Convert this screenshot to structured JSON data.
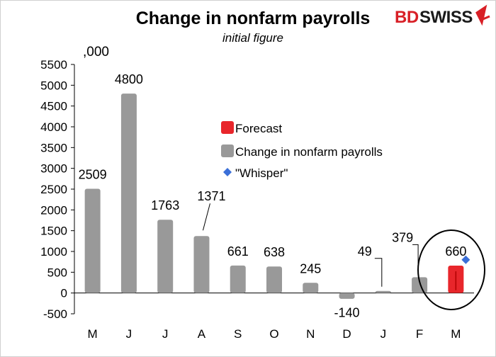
{
  "header": {
    "title": "Change in nonfarm payrolls",
    "subtitle": "initial figure"
  },
  "logo": {
    "text_bd": "BD",
    "text_swiss": "SWISS",
    "accent_color": "#d81f26"
  },
  "chart_data": {
    "type": "bar",
    "title": "Change in nonfarm payrolls",
    "subtitle": "initial figure",
    "unit_label": ",000",
    "categories": [
      "M",
      "J",
      "J",
      "A",
      "S",
      "O",
      "N",
      "D",
      "J",
      "F",
      "M"
    ],
    "series": [
      {
        "name": "Change in nonfarm payrolls",
        "color": "#999999",
        "values": [
          2509,
          4800,
          1763,
          1371,
          661,
          638,
          245,
          -140,
          49,
          379,
          null
        ]
      },
      {
        "name": "Forecast",
        "color": "#e8262b",
        "values": [
          null,
          null,
          null,
          null,
          null,
          null,
          null,
          null,
          null,
          null,
          660
        ]
      },
      {
        "name": "\"Whisper\"",
        "marker": "diamond",
        "color": "#3a6fd8",
        "values": [
          null,
          null,
          null,
          null,
          null,
          null,
          null,
          null,
          null,
          null,
          800
        ]
      }
    ],
    "data_labels": [
      "2509",
      "4800",
      "1763",
      "1371",
      "661",
      "638",
      "245",
      "-140",
      "49",
      "379",
      "660"
    ],
    "ylim": [
      -500,
      5500
    ],
    "yticks": [
      -500,
      0,
      500,
      1000,
      1500,
      2000,
      2500,
      3000,
      3500,
      4000,
      4500,
      5000,
      5500
    ],
    "grid": false,
    "legend_position": "center-right",
    "highlight_category_index": 10
  }
}
